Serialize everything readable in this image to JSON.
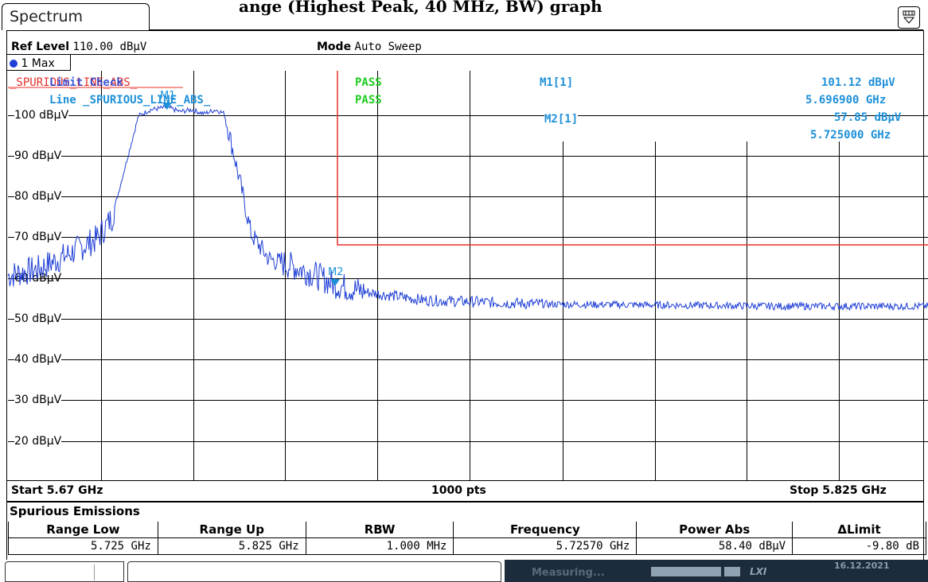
{
  "heading_fragment": "ange (Highest Peak, 40 MHz, BW) graph",
  "tab": {
    "label": "Spectrum"
  },
  "info": {
    "ref_level_label": "Ref Level",
    "ref_level_value": "110.00 dBµV",
    "mode_label": "Mode",
    "mode_value": "Auto Sweep"
  },
  "trace": {
    "label": "1 Max"
  },
  "limits": {
    "name_red": "_SPURIOUS_LINE_ABS_",
    "limit_check_label": "Limit Check",
    "line_label": "Line _SPURIOUS_LINE_ABS_",
    "result_1": "PASS",
    "result_2": "PASS"
  },
  "markers": [
    {
      "name": "M1",
      "label": "M1[1]",
      "level": "101.12 dBµV",
      "freq": "5.696900 GHz"
    },
    {
      "name": "M2",
      "label": "M2[1]",
      "level": "57.85 dBµV",
      "freq": "5.725000 GHz"
    }
  ],
  "y_axis_labels": [
    "100 dBµV",
    "90 dBµV",
    "80 dBµV",
    "70 dBµV",
    "60 dBµV",
    "50 dBµV",
    "40 dBµV",
    "30 dBµV",
    "20 dBµV"
  ],
  "bottom_bar": {
    "start": "Start 5.67 GHz",
    "points": "1000 pts",
    "stop": "Stop 5.825 GHz"
  },
  "spurious": {
    "title": "Spurious Emissions",
    "columns": [
      "Range Low",
      "Range Up",
      "RBW",
      "Frequency",
      "Power Abs",
      "ΔLimit"
    ],
    "rows": [
      [
        "5.725 GHz",
        "5.825 GHz",
        "1.000 MHz",
        "5.72570 GHz",
        "58.40 dBµV",
        "-9.80 dB"
      ]
    ]
  },
  "status": {
    "measuring": "Measuring...",
    "date": "16.12.2021"
  },
  "colors": {
    "trace": "#1f3fd6",
    "marker": "#1e90d8",
    "limit_red": "#e8302a",
    "pass_green": "#22cc22"
  },
  "chart_data": {
    "type": "line",
    "x_range_ghz": [
      5.67,
      5.825
    ],
    "y_range_dbuv": [
      10,
      110
    ],
    "points": 1000,
    "limit_line_dbuv": 68.2,
    "limit_line_start_ghz": 5.725,
    "series": [
      {
        "x": [
          5.67,
          5.675,
          5.68,
          5.685,
          5.6875,
          5.69,
          5.692,
          5.694,
          5.6969,
          5.699,
          5.701,
          5.703,
          5.705,
          5.7065,
          5.708,
          5.711,
          5.714,
          5.7185,
          5.722,
          5.725,
          5.73,
          5.74,
          5.76,
          5.78,
          5.8,
          5.825
        ],
        "y": [
          60,
          61.5,
          65,
          69,
          74,
          88,
          99,
          100.5,
          101.1,
          100,
          100.5,
          99.5,
          100.5,
          99.5,
          90,
          70,
          64,
          62,
          60,
          57.8,
          56,
          54,
          53,
          52.8,
          52.5,
          52.5
        ]
      }
    ]
  }
}
